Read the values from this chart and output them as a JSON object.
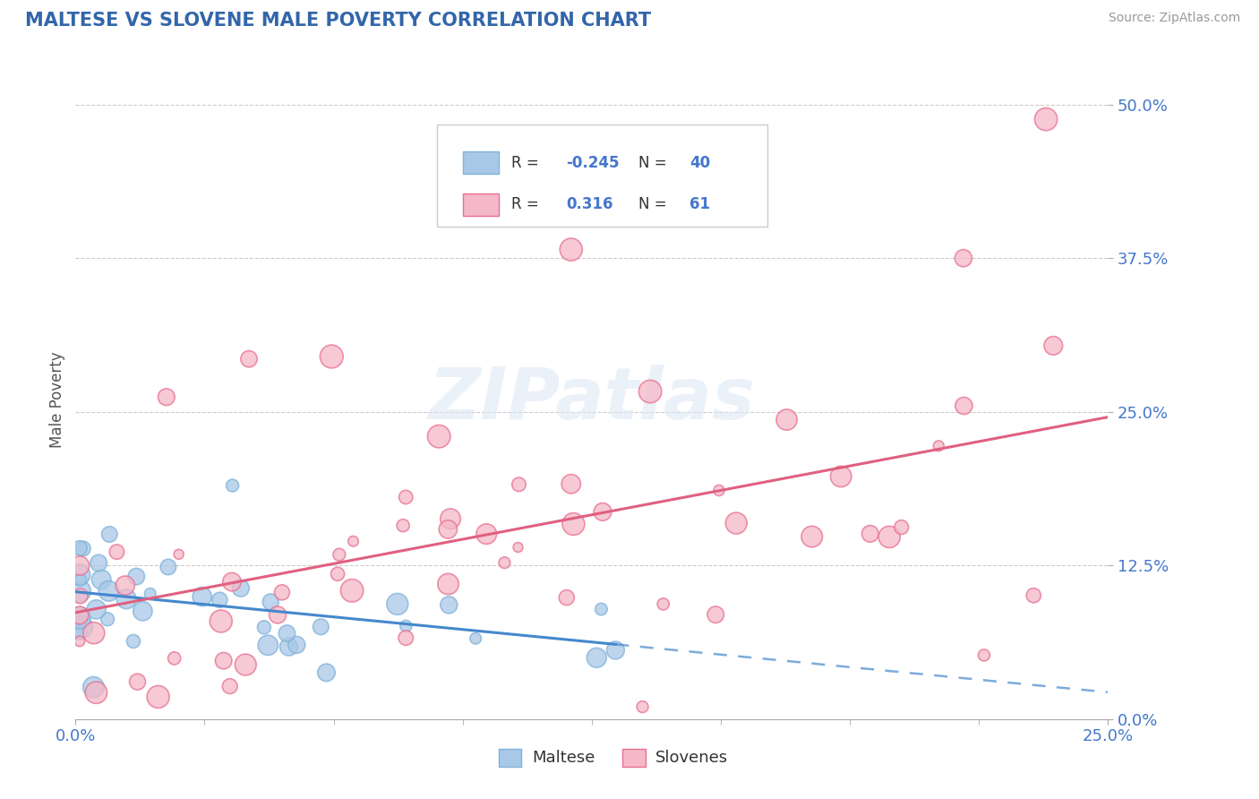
{
  "title": "MALTESE VS SLOVENE MALE POVERTY CORRELATION CHART",
  "source": "Source: ZipAtlas.com",
  "ylabel": "Male Poverty",
  "maltese_R": -0.245,
  "maltese_N": 40,
  "slovene_R": 0.316,
  "slovene_N": 61,
  "maltese_color": "#a8c8e8",
  "maltese_edge_color": "#7fb3d9",
  "slovene_color": "#f4b8c8",
  "slovene_edge_color": "#e87090",
  "maltese_line_color": "#4488cc",
  "slovene_line_color": "#e06080",
  "title_color": "#3366aa",
  "axis_label_color": "#4477cc",
  "legend_R_color": "#4477cc",
  "grid_color": "#cccccc",
  "background_color": "#ffffff",
  "xmin": 0.0,
  "xmax": 0.25,
  "ymin": 0.0,
  "ymax": 0.52,
  "yticks": [
    0.0,
    0.125,
    0.25,
    0.375,
    0.5
  ],
  "ytick_labels": [
    "0.0%",
    "12.5%",
    "25.0%",
    "37.5%",
    "50.0%"
  ],
  "xticks": [
    0.0,
    0.25
  ],
  "xtick_labels": [
    "0.0%",
    "25.0%"
  ]
}
